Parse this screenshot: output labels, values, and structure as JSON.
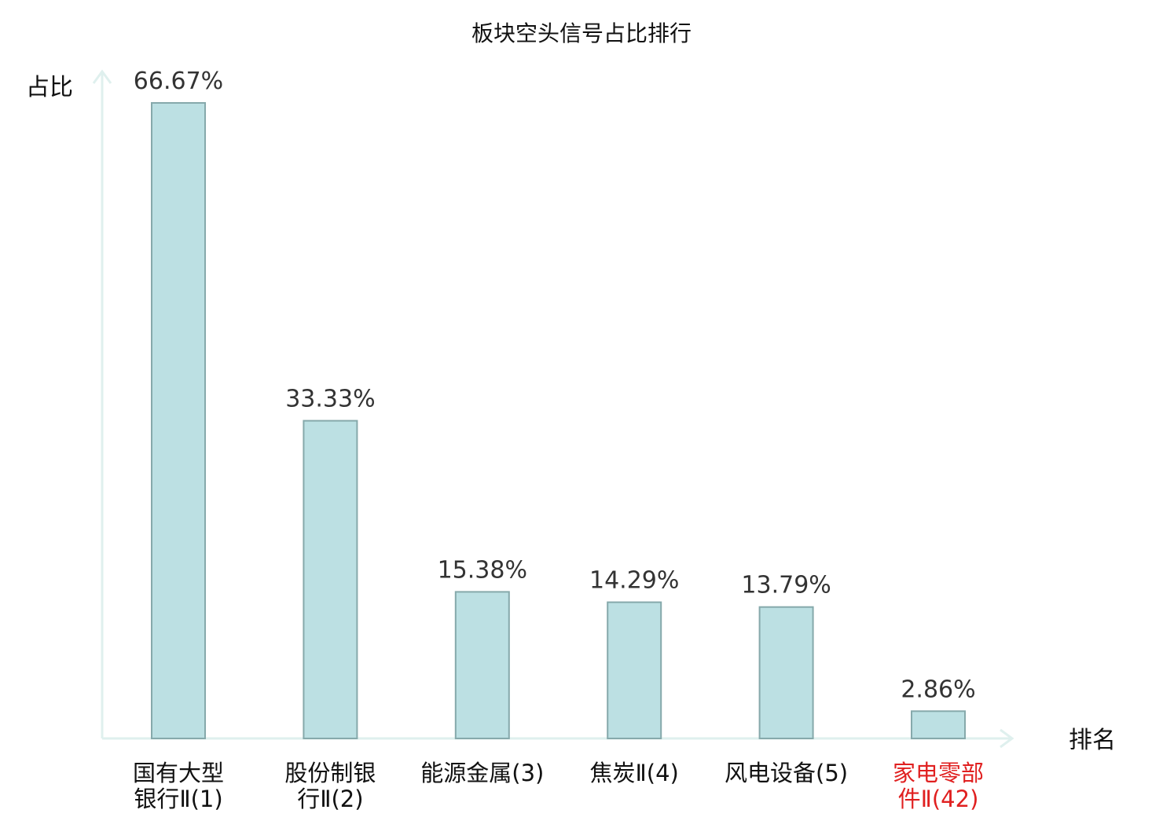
{
  "chart_data": {
    "type": "bar",
    "title": "板块空头信号占比排行",
    "ylabel": "占比",
    "xlabel": "排名",
    "ylim": [
      0,
      66.67
    ],
    "categories": [
      [
        "国有大型",
        "银行Ⅱ(1)"
      ],
      [
        "股份制银",
        "行Ⅱ(2)"
      ],
      [
        "能源金属(3)"
      ],
      [
        "焦炭Ⅱ(4)"
      ],
      [
        "风电设备(5)"
      ],
      [
        "家电零部",
        "件Ⅱ(42)"
      ]
    ],
    "values": [
      66.67,
      33.33,
      15.38,
      14.29,
      13.79,
      2.86
    ],
    "value_labels": [
      "66.67%",
      "33.33%",
      "15.38%",
      "14.29%",
      "13.79%",
      "2.86%"
    ],
    "highlight_index": 5,
    "grid": false,
    "colors": {
      "bar_fill": "#bce0e3",
      "bar_stroke": "#86a9ab",
      "axis": "#dff0ee",
      "highlight_label": "#e02020"
    }
  }
}
